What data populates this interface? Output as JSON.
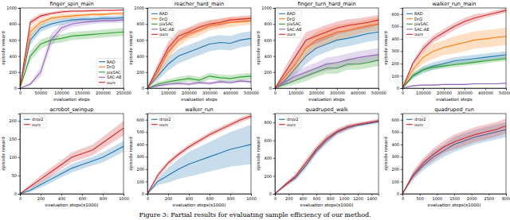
{
  "chart_data": [
    {
      "type": "line",
      "title": "finger_spin_main",
      "x_label": "evaluation steps",
      "y_label": "episode reward",
      "legend": "lower right",
      "x": [
        0,
        25000,
        50000,
        75000,
        100000,
        125000,
        150000,
        175000,
        200000,
        225000,
        250000
      ],
      "xlim": [
        0,
        250000
      ],
      "xticks": [
        0,
        50000,
        100000,
        150000,
        200000,
        250000
      ],
      "ylim": [
        0,
        1000
      ],
      "yticks": [
        0,
        200,
        400,
        600,
        800,
        1000
      ],
      "series": [
        {
          "name": "RAD",
          "color": "#1f77b4",
          "values": [
            0,
            600,
            750,
            800,
            830,
            850,
            860,
            860,
            870,
            870,
            880
          ],
          "error": [
            0,
            60,
            50,
            40,
            40,
            30,
            30,
            30,
            30,
            30,
            30
          ]
        },
        {
          "name": "DrQ",
          "color": "#ff7f0e",
          "values": [
            0,
            700,
            820,
            870,
            890,
            900,
            910,
            920,
            920,
            930,
            930
          ],
          "error": [
            0,
            60,
            40,
            30,
            30,
            30,
            20,
            20,
            20,
            20,
            20
          ]
        },
        {
          "name": "pixSAC",
          "color": "#2ca02c",
          "values": [
            0,
            400,
            550,
            600,
            620,
            650,
            660,
            670,
            680,
            690,
            700
          ],
          "error": [
            0,
            60,
            60,
            50,
            50,
            50,
            50,
            50,
            50,
            50,
            50
          ]
        },
        {
          "name": "SAC-AE",
          "color": "#9467bd",
          "values": [
            0,
            50,
            200,
            600,
            750,
            800,
            820,
            830,
            840,
            840,
            850
          ],
          "error": [
            0,
            20,
            60,
            80,
            50,
            40,
            40,
            30,
            30,
            30,
            30
          ]
        },
        {
          "name": "ours",
          "color": "#d62728",
          "values": [
            0,
            820,
            900,
            930,
            950,
            960,
            960,
            965,
            970,
            970,
            975
          ],
          "error": [
            0,
            40,
            30,
            20,
            20,
            15,
            15,
            15,
            10,
            10,
            10
          ]
        }
      ]
    },
    {
      "type": "line",
      "title": "reacher_hard_main",
      "x_label": "evaluation steps",
      "y_label": "episode reward",
      "legend": "upper left",
      "x": [
        0,
        50000,
        100000,
        150000,
        200000,
        250000,
        300000,
        350000,
        400000,
        450000,
        500000
      ],
      "xlim": [
        0,
        500000
      ],
      "xticks": [
        0,
        100000,
        200000,
        300000,
        400000,
        500000
      ],
      "ylim": [
        0,
        1000
      ],
      "yticks": [
        0,
        200,
        400,
        600,
        800,
        1000
      ],
      "series": [
        {
          "name": "RAD",
          "color": "#1f77b4",
          "values": [
            0,
            150,
            300,
            400,
            450,
            500,
            550,
            570,
            560,
            600,
            620
          ],
          "error": [
            0,
            50,
            80,
            90,
            90,
            90,
            90,
            90,
            90,
            90,
            90
          ]
        },
        {
          "name": "DrQ",
          "color": "#ff7f0e",
          "values": [
            0,
            200,
            450,
            600,
            680,
            720,
            780,
            800,
            820,
            830,
            840
          ],
          "error": [
            0,
            60,
            80,
            80,
            70,
            70,
            60,
            60,
            60,
            50,
            50
          ]
        },
        {
          "name": "pixSAC",
          "color": "#2ca02c",
          "values": [
            0,
            50,
            80,
            100,
            120,
            100,
            150,
            130,
            120,
            140,
            150
          ],
          "error": [
            0,
            30,
            30,
            40,
            40,
            40,
            40,
            40,
            40,
            40,
            40
          ]
        },
        {
          "name": "SAC-AE",
          "color": "#9467bd",
          "values": [
            0,
            30,
            50,
            60,
            50,
            70,
            60,
            80,
            70,
            90,
            80
          ],
          "error": [
            0,
            20,
            20,
            20,
            20,
            20,
            20,
            20,
            20,
            20,
            20
          ]
        },
        {
          "name": "ours",
          "color": "#d62728",
          "values": [
            0,
            250,
            500,
            650,
            700,
            760,
            800,
            820,
            850,
            860,
            870
          ],
          "error": [
            0,
            60,
            80,
            70,
            60,
            60,
            50,
            50,
            40,
            40,
            40
          ]
        }
      ]
    },
    {
      "type": "line",
      "title": "finger_turn_hard_main",
      "x_label": "evaluation steps",
      "y_label": "episode reward",
      "legend": "upper left",
      "x": [
        0,
        50000,
        100000,
        150000,
        200000,
        250000,
        300000,
        350000,
        400000,
        450000,
        500000
      ],
      "xlim": [
        0,
        500000
      ],
      "xticks": [
        0,
        100000,
        200000,
        300000,
        400000,
        500000
      ],
      "ylim": [
        0,
        1000
      ],
      "yticks": [
        0,
        200,
        400,
        600,
        800,
        1000
      ],
      "series": [
        {
          "name": "RAD",
          "color": "#1f77b4",
          "values": [
            0,
            100,
            250,
            400,
            500,
            550,
            600,
            620,
            650,
            680,
            700
          ],
          "error": [
            0,
            50,
            80,
            100,
            100,
            100,
            100,
            100,
            100,
            100,
            100
          ]
        },
        {
          "name": "DrQ",
          "color": "#ff7f0e",
          "values": [
            0,
            150,
            300,
            500,
            600,
            650,
            700,
            720,
            750,
            780,
            800
          ],
          "error": [
            0,
            60,
            90,
            100,
            100,
            100,
            90,
            90,
            80,
            80,
            80
          ]
        },
        {
          "name": "pixSAC",
          "color": "#2ca02c",
          "values": [
            0,
            50,
            100,
            150,
            200,
            250,
            250,
            300,
            300,
            320,
            350
          ],
          "error": [
            0,
            30,
            50,
            60,
            60,
            70,
            70,
            70,
            70,
            70,
            70
          ]
        },
        {
          "name": "SAC-AE",
          "color": "#9467bd",
          "values": [
            0,
            80,
            150,
            200,
            250,
            300,
            320,
            350,
            380,
            400,
            420
          ],
          "error": [
            0,
            40,
            60,
            70,
            70,
            80,
            80,
            80,
            80,
            80,
            80
          ]
        },
        {
          "name": "ours",
          "color": "#d62728",
          "values": [
            0,
            200,
            400,
            600,
            650,
            700,
            750,
            780,
            800,
            820,
            850
          ],
          "error": [
            0,
            70,
            90,
            100,
            90,
            90,
            80,
            80,
            70,
            70,
            60
          ]
        }
      ]
    },
    {
      "type": "line",
      "title": "walker_run_main",
      "x_label": "evaluation steps",
      "y_label": "episode reward",
      "legend": "upper left",
      "x": [
        0,
        50000,
        100000,
        150000,
        200000,
        250000,
        300000,
        350000,
        400000,
        450000,
        500000
      ],
      "xlim": [
        0,
        500000
      ],
      "xticks": [
        0,
        100000,
        200000,
        300000,
        400000,
        500000
      ],
      "ylim": [
        0,
        650
      ],
      "yticks": [
        0,
        100,
        200,
        300,
        400,
        500,
        600
      ],
      "series": [
        {
          "name": "RAD",
          "color": "#1f77b4",
          "values": [
            0,
            100,
            150,
            180,
            200,
            220,
            230,
            240,
            250,
            260,
            270
          ],
          "error": [
            0,
            20,
            30,
            30,
            30,
            30,
            30,
            30,
            30,
            30,
            30
          ]
        },
        {
          "name": "DrQ",
          "color": "#ff7f0e",
          "values": [
            0,
            150,
            250,
            300,
            330,
            350,
            370,
            390,
            400,
            410,
            420
          ],
          "error": [
            0,
            30,
            50,
            60,
            60,
            70,
            70,
            70,
            70,
            70,
            70
          ]
        },
        {
          "name": "pixSAC",
          "color": "#2ca02c",
          "values": [
            0,
            100,
            150,
            170,
            180,
            190,
            200,
            210,
            220,
            230,
            240
          ],
          "error": [
            0,
            20,
            20,
            20,
            20,
            20,
            20,
            20,
            20,
            20,
            20
          ]
        },
        {
          "name": "SAC-AE",
          "color": "#9467bd",
          "values": [
            0,
            20,
            25,
            25,
            30,
            30,
            30,
            35,
            35,
            35,
            40
          ],
          "error": [
            0,
            5,
            5,
            5,
            5,
            5,
            5,
            5,
            5,
            5,
            5
          ]
        },
        {
          "name": "ours",
          "color": "#d62728",
          "values": [
            0,
            200,
            320,
            400,
            450,
            500,
            540,
            570,
            590,
            610,
            630
          ],
          "error": [
            0,
            20,
            30,
            30,
            30,
            30,
            30,
            30,
            20,
            20,
            20
          ]
        }
      ]
    },
    {
      "type": "line",
      "title": "acrobot_swingup",
      "x_label": "evaluation steps(x1000)",
      "y_label": "episode reward",
      "legend": "upper left",
      "x": [
        0,
        100,
        200,
        300,
        400,
        500,
        600,
        700,
        800,
        900,
        1000
      ],
      "xlim": [
        0,
        1000
      ],
      "xticks": [
        0,
        200,
        400,
        600,
        800,
        1000
      ],
      "ylim": [
        0,
        220
      ],
      "yticks": [
        0,
        50,
        100,
        150,
        200
      ],
      "series": [
        {
          "name": "drqv2",
          "color": "#1f77b4",
          "values": [
            0,
            10,
            25,
            40,
            55,
            70,
            80,
            90,
            100,
            115,
            130
          ],
          "error": [
            0,
            5,
            8,
            10,
            10,
            12,
            12,
            12,
            14,
            14,
            15
          ]
        },
        {
          "name": "ours",
          "color": "#d62728",
          "values": [
            0,
            20,
            40,
            60,
            80,
            100,
            110,
            120,
            140,
            160,
            180
          ],
          "error": [
            0,
            6,
            10,
            12,
            12,
            14,
            14,
            15,
            16,
            18,
            20
          ]
        }
      ]
    },
    {
      "type": "line",
      "title": "walker_run",
      "x_label": "evaluation steps(x1000)",
      "y_label": "episode reward",
      "legend": "upper left",
      "x": [
        0,
        100,
        200,
        300,
        400,
        500,
        600,
        700,
        800,
        900,
        1000
      ],
      "xlim": [
        0,
        1000
      ],
      "xticks": [
        0,
        200,
        400,
        600,
        800,
        1000
      ],
      "ylim": [
        0,
        650
      ],
      "yticks": [
        0,
        100,
        200,
        300,
        400,
        500,
        600
      ],
      "series": [
        {
          "name": "drqv2",
          "color": "#1f77b4",
          "values": [
            0,
            100,
            150,
            200,
            240,
            270,
            300,
            330,
            360,
            380,
            400
          ],
          "error": [
            0,
            30,
            60,
            80,
            100,
            110,
            120,
            130,
            140,
            150,
            160
          ]
        },
        {
          "name": "ours",
          "color": "#d62728",
          "values": [
            0,
            150,
            250,
            320,
            380,
            430,
            480,
            520,
            560,
            600,
            630
          ],
          "error": [
            0,
            20,
            20,
            20,
            20,
            20,
            20,
            20,
            20,
            20,
            20
          ]
        }
      ]
    },
    {
      "type": "line",
      "title": "quadruped_walk",
      "x_label": "evaluation steps(x1000)",
      "y_label": "episode reward",
      "legend": "upper left",
      "x": [
        0,
        150,
        300,
        450,
        600,
        750,
        900,
        1050,
        1200,
        1350,
        1500
      ],
      "xlim": [
        0,
        1500
      ],
      "xticks": [
        0,
        200,
        400,
        600,
        800,
        1000,
        1200,
        1400
      ],
      "ylim": [
        0,
        900
      ],
      "yticks": [
        0,
        200,
        400,
        600,
        800
      ],
      "series": [
        {
          "name": "drqv2",
          "color": "#1f77b4",
          "values": [
            0,
            100,
            180,
            320,
            480,
            600,
            690,
            740,
            770,
            790,
            810
          ],
          "error": [
            0,
            20,
            30,
            40,
            40,
            40,
            30,
            30,
            20,
            20,
            20
          ]
        },
        {
          "name": "ours",
          "color": "#d62728",
          "values": [
            0,
            100,
            200,
            350,
            500,
            620,
            700,
            750,
            780,
            800,
            820
          ],
          "error": [
            0,
            20,
            30,
            40,
            40,
            40,
            30,
            30,
            20,
            20,
            20
          ]
        }
      ]
    },
    {
      "type": "line",
      "title": "quadruped_run",
      "x_label": "evaluation steps(x1000)",
      "y_label": "episode reward",
      "legend": "upper left",
      "x": [
        0,
        300,
        600,
        900,
        1200,
        1500,
        1800,
        2100,
        2400,
        2700,
        3000
      ],
      "xlim": [
        0,
        3000
      ],
      "xticks": [
        0,
        500,
        1000,
        1500,
        2000,
        2500,
        3000
      ],
      "ylim": [
        0,
        650
      ],
      "yticks": [
        0,
        100,
        200,
        300,
        400,
        500,
        600
      ],
      "series": [
        {
          "name": "drqv2",
          "color": "#1f77b4",
          "values": [
            0,
            140,
            230,
            300,
            350,
            400,
            430,
            460,
            480,
            500,
            520
          ],
          "error": [
            0,
            30,
            40,
            50,
            50,
            60,
            60,
            60,
            60,
            60,
            60
          ]
        },
        {
          "name": "ours",
          "color": "#d62728",
          "values": [
            0,
            150,
            250,
            320,
            380,
            420,
            450,
            480,
            500,
            520,
            550
          ],
          "error": [
            0,
            30,
            40,
            50,
            50,
            60,
            60,
            60,
            60,
            60,
            60
          ]
        }
      ]
    }
  ],
  "caption": "Figure 3: Partial results for evaluating sample efficiency of our method."
}
